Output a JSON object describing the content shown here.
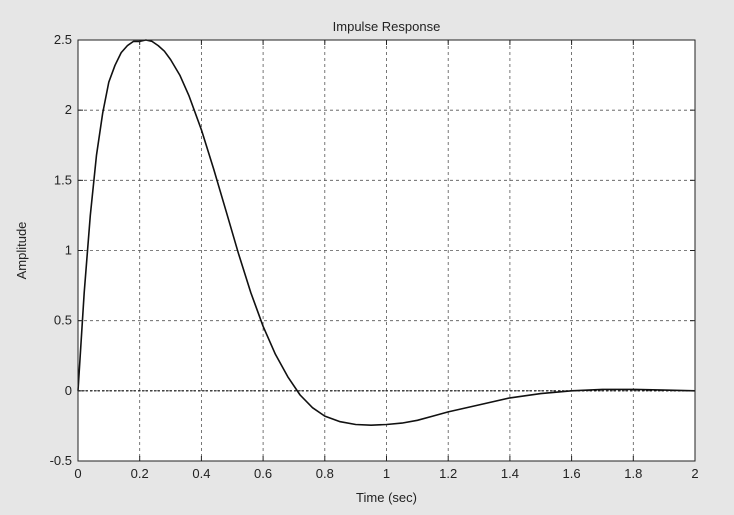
{
  "chart_data": {
    "type": "line",
    "title": "Impulse Response",
    "xlabel": "Time (sec)",
    "ylabel": "Amplitude",
    "xlim": [
      0,
      2
    ],
    "ylim": [
      -0.5,
      2.5
    ],
    "xticks": [
      0,
      0.2,
      0.4,
      0.6,
      0.8,
      1,
      1.2,
      1.4,
      1.6,
      1.8,
      2
    ],
    "yticks": [
      -0.5,
      0,
      0.5,
      1,
      1.5,
      2,
      2.5
    ],
    "xtick_labels": [
      "0",
      "0.2",
      "0.4",
      "0.6",
      "0.8",
      "1",
      "1.2",
      "1.4",
      "1.6",
      "1.8",
      "2"
    ],
    "ytick_labels": [
      "-0.5",
      "0",
      "0.5",
      "1",
      "1.5",
      "2",
      "2.5"
    ],
    "grid": true,
    "series": [
      {
        "x": [
          0,
          0.01,
          0.02,
          0.04,
          0.06,
          0.08,
          0.1,
          0.12,
          0.14,
          0.16,
          0.18,
          0.2,
          0.22,
          0.24,
          0.26,
          0.28,
          0.3,
          0.33,
          0.36,
          0.4,
          0.44,
          0.48,
          0.52,
          0.56,
          0.6,
          0.64,
          0.68,
          0.72,
          0.76,
          0.8,
          0.85,
          0.9,
          0.95,
          1.0,
          1.05,
          1.1,
          1.15,
          1.2,
          1.3,
          1.4,
          1.5,
          1.6,
          1.7,
          1.8,
          1.9,
          2.0
        ],
        "y": [
          0,
          0.35,
          0.7,
          1.25,
          1.68,
          1.98,
          2.2,
          2.32,
          2.41,
          2.46,
          2.49,
          2.49,
          2.5,
          2.49,
          2.46,
          2.42,
          2.36,
          2.25,
          2.1,
          1.86,
          1.58,
          1.28,
          0.98,
          0.7,
          0.46,
          0.26,
          0.1,
          -0.03,
          -0.12,
          -0.18,
          -0.22,
          -0.24,
          -0.245,
          -0.24,
          -0.23,
          -0.21,
          -0.18,
          -0.15,
          -0.1,
          -0.05,
          -0.02,
          0.0,
          0.01,
          0.01,
          0.005,
          0.0
        ],
        "color": "#111111"
      }
    ]
  }
}
